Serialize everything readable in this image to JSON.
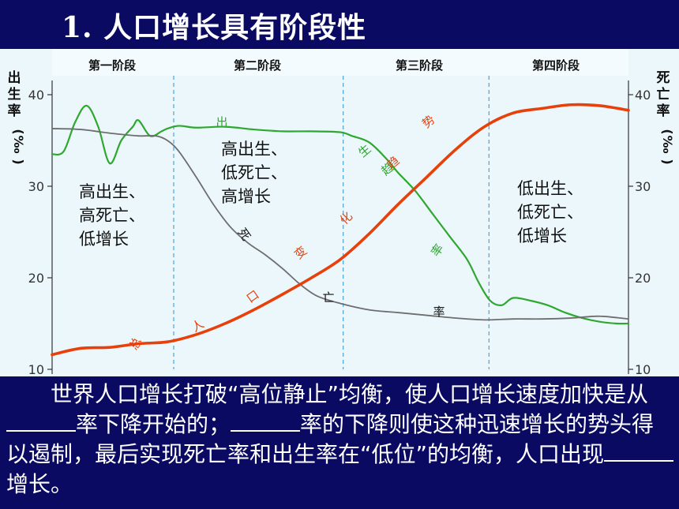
{
  "slide": {
    "title": "1.    人口增长具有阶段性"
  },
  "chart_data": {
    "type": "line",
    "stages": [
      "第一阶段",
      "第二阶段",
      "第三阶段",
      "第四阶段"
    ],
    "left_axis_label": "出生率(‰)",
    "right_axis_label": "死亡率(‰)",
    "ylim": [
      10,
      40
    ],
    "yticks": [
      10,
      20,
      30,
      40
    ],
    "series": [
      {
        "name": "出生率",
        "color": "#2ea82e",
        "x": [
          0,
          0.02,
          0.04,
          0.06,
          0.08,
          0.1,
          0.12,
          0.14,
          0.15,
          0.17,
          0.19,
          0.2,
          0.22,
          0.25,
          0.3,
          0.35,
          0.4,
          0.45,
          0.5,
          0.52,
          0.55,
          0.58,
          0.6,
          0.63,
          0.66,
          0.69,
          0.72,
          0.74,
          0.76,
          0.78,
          0.8,
          0.83,
          0.86,
          0.89,
          0.92,
          0.95,
          0.98,
          1.0
        ],
        "y": [
          33.5,
          33.8,
          37,
          38.8,
          36.5,
          32.5,
          35,
          36.5,
          37.2,
          35.5,
          36,
          36.3,
          36.6,
          36.4,
          36.5,
          36.2,
          36,
          36,
          35.9,
          35.5,
          34.8,
          33,
          31.5,
          29.5,
          27,
          24.5,
          22,
          19.5,
          17.5,
          17,
          17.8,
          17.5,
          17,
          16.2,
          15.6,
          15.2,
          15,
          15
        ]
      },
      {
        "name": "死亡率",
        "color": "#6e6e6e",
        "x": [
          0,
          0.05,
          0.1,
          0.15,
          0.18,
          0.2,
          0.22,
          0.25,
          0.28,
          0.31,
          0.34,
          0.37,
          0.4,
          0.43,
          0.46,
          0.5,
          0.55,
          0.6,
          0.65,
          0.7,
          0.75,
          0.8,
          0.85,
          0.9,
          0.95,
          1.0
        ],
        "y": [
          36.3,
          36.2,
          35.8,
          35.5,
          35.5,
          35,
          33.8,
          31,
          28,
          25.5,
          23.8,
          22.5,
          21,
          19.3,
          18,
          17.2,
          16.5,
          16.2,
          15.9,
          15.6,
          15.4,
          15.5,
          15.5,
          15.6,
          15.8,
          15.5
        ]
      },
      {
        "name": "总人口变化趋势",
        "color": "#e8400a",
        "x": [
          0,
          0.05,
          0.1,
          0.15,
          0.2,
          0.25,
          0.3,
          0.35,
          0.4,
          0.45,
          0.5,
          0.55,
          0.6,
          0.65,
          0.7,
          0.75,
          0.8,
          0.85,
          0.9,
          0.95,
          1.0
        ],
        "y": [
          11.6,
          12.3,
          12.4,
          12.8,
          13,
          13.8,
          15,
          16.5,
          18.2,
          20,
          22,
          24.8,
          28,
          31,
          34,
          36.5,
          38,
          38.5,
          38.9,
          38.8,
          38.3
        ]
      }
    ],
    "curve_labels": {
      "birth": [
        "出",
        "生",
        "趋",
        "率"
      ],
      "death": [
        "死",
        "亡",
        "率"
      ],
      "population": [
        "总",
        "人",
        "口",
        "变",
        "化",
        "趋",
        "势"
      ]
    },
    "annotations": [
      [
        "高出生、",
        "高死亡、",
        "低增长"
      ],
      [
        "高出生、",
        "低死亡、",
        "高增长"
      ],
      [
        "低出生、",
        "低死亡、",
        "低增长"
      ]
    ]
  },
  "caption": {
    "part1": "世界人口增长打破“高位静止”均衡，使人口增长速度加快是从",
    "part2": "率下降开始的；",
    "part3": "率的下降则使这种迅速增长的势头得以遏制，最后实现死亡率和出生率在“低位”的均衡，人口出现",
    "part4": "增长。"
  }
}
